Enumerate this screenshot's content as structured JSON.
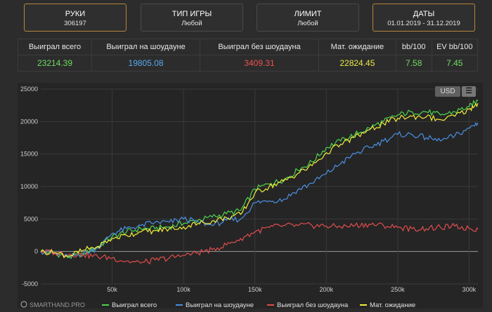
{
  "filters": [
    {
      "title": "РУКИ",
      "value": "306197"
    },
    {
      "title": "ТИП ИГРЫ",
      "value": "Любой"
    },
    {
      "title": "ЛИМИТ",
      "value": "Любой"
    },
    {
      "title": "ДАТЫ",
      "value": "01.01.2019 - 31.12.2019"
    }
  ],
  "stats": {
    "headers": [
      "Выиграл всего",
      "Выиграл на шоудауне",
      "Выиграл без шоудауна",
      "Мат. ожидание",
      "bb/100",
      "EV bb/100"
    ],
    "values": [
      "23214.39",
      "19805.08",
      "3409.31",
      "22824.45",
      "7.58",
      "7.45"
    ],
    "value_colors": [
      "#6fdc62",
      "#59a9ee",
      "#ee5050",
      "#ebe84a",
      "#6fdc62",
      "#6fdc62"
    ]
  },
  "chart_controls": {
    "currency": "USD",
    "menu_icon": "hamburger-icon"
  },
  "branding": {
    "logo_text": "SMARTHAND.PRO"
  },
  "chart_data": {
    "type": "line",
    "x_unit": "hands",
    "xlim": [
      0,
      306197
    ],
    "ylim": [
      -5000,
      25000
    ],
    "yticks": [
      -5000,
      0,
      5000,
      10000,
      15000,
      20000,
      25000
    ],
    "ytick_labels": [
      "-5000",
      "0",
      "5000",
      "10000",
      "15000",
      "20000",
      "25000"
    ],
    "xticks": [
      50000,
      100000,
      150000,
      200000,
      250000,
      300000
    ],
    "xtick_labels": [
      "50k",
      "100k",
      "150k",
      "200k",
      "250k",
      "300k"
    ],
    "grid": true,
    "legend_position": "bottom",
    "series": [
      {
        "name": "Выиграл всего",
        "color": "#4fd44f",
        "x": [
          0,
          10000,
          20000,
          30000,
          40000,
          50000,
          60000,
          70000,
          80000,
          90000,
          100000,
          110000,
          120000,
          130000,
          140000,
          150000,
          160000,
          170000,
          180000,
          190000,
          200000,
          210000,
          220000,
          230000,
          240000,
          250000,
          260000,
          270000,
          280000,
          290000,
          300000,
          306197
        ],
        "values": [
          0,
          -300,
          -900,
          -300,
          700,
          2300,
          3000,
          3500,
          3500,
          3800,
          4300,
          4800,
          5300,
          5800,
          6300,
          9600,
          10400,
          11000,
          12500,
          13800,
          16000,
          17000,
          18000,
          19000,
          20000,
          21000,
          21500,
          21500,
          21000,
          21500,
          22300,
          23214
        ]
      },
      {
        "name": "Выиграл на шоудауне",
        "color": "#4a90e2",
        "x": [
          0,
          10000,
          20000,
          30000,
          40000,
          50000,
          60000,
          70000,
          80000,
          90000,
          100000,
          110000,
          120000,
          130000,
          140000,
          150000,
          160000,
          170000,
          180000,
          190000,
          200000,
          210000,
          220000,
          230000,
          240000,
          250000,
          260000,
          270000,
          280000,
          290000,
          300000,
          306197
        ],
        "values": [
          0,
          -300,
          -800,
          -300,
          500,
          2800,
          3500,
          4000,
          4500,
          4500,
          5000,
          4600,
          4000,
          4800,
          5000,
          7500,
          7800,
          8000,
          9500,
          10500,
          12000,
          13500,
          15000,
          16000,
          17000,
          18000,
          18000,
          17500,
          17000,
          17800,
          19000,
          19805
        ]
      },
      {
        "name": "Выиграл без шоудауна",
        "color": "#e14c4c",
        "x": [
          0,
          10000,
          20000,
          30000,
          40000,
          50000,
          60000,
          70000,
          80000,
          90000,
          100000,
          110000,
          120000,
          130000,
          140000,
          150000,
          160000,
          170000,
          180000,
          190000,
          200000,
          210000,
          220000,
          230000,
          240000,
          250000,
          260000,
          270000,
          280000,
          290000,
          300000,
          306197
        ],
        "values": [
          0,
          -200,
          -400,
          -500,
          -800,
          -1000,
          -1500,
          -1800,
          -1300,
          -1000,
          -600,
          -200,
          300,
          1000,
          2000,
          3000,
          3700,
          4000,
          4000,
          4000,
          3900,
          3800,
          4000,
          4200,
          4000,
          3700,
          3500,
          3500,
          3700,
          3900,
          3500,
          3409
        ]
      },
      {
        "name": "Мат. ожидание",
        "color": "#f2ee3a",
        "x": [
          0,
          10000,
          20000,
          30000,
          40000,
          50000,
          60000,
          70000,
          80000,
          90000,
          100000,
          110000,
          120000,
          130000,
          140000,
          150000,
          160000,
          170000,
          180000,
          190000,
          200000,
          210000,
          220000,
          230000,
          240000,
          250000,
          260000,
          270000,
          280000,
          290000,
          300000,
          306197
        ],
        "values": [
          0,
          -200,
          -700,
          200,
          800,
          2000,
          2500,
          3000,
          3200,
          3500,
          3800,
          4300,
          4700,
          5200,
          5700,
          9000,
          10000,
          10800,
          12000,
          13200,
          15200,
          16500,
          17600,
          18700,
          19700,
          20500,
          20800,
          20700,
          20300,
          20800,
          21900,
          22824
        ]
      }
    ]
  }
}
